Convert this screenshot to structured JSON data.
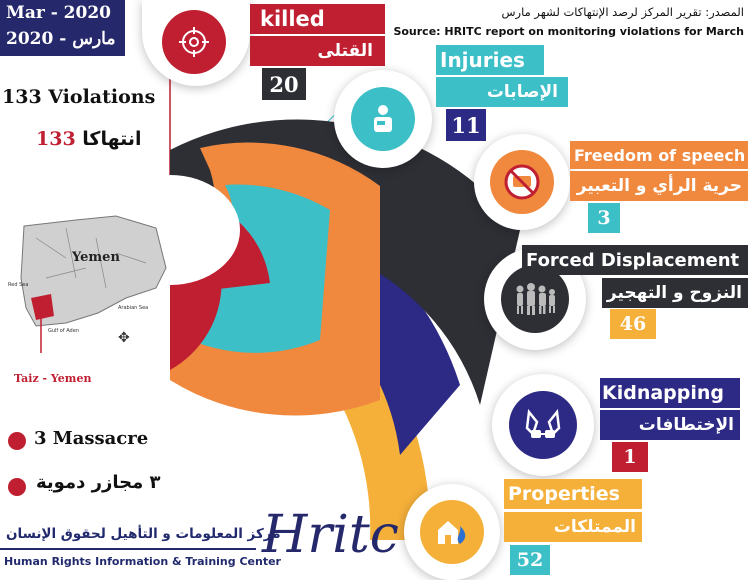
{
  "date": {
    "en": "Mar - 2020",
    "ar": "مارس - 2020"
  },
  "source": {
    "ar": "المصدر: تقرير المركز لرصد الإنتهاكات لشهر مارس",
    "en": "Source: HRITC report on monitoring violations for March"
  },
  "violations": {
    "en": "133 Violations",
    "ar_number": "133",
    "ar_text": "انتهاكا"
  },
  "map": {
    "country": "Yemen",
    "location": "Taiz - Yemen",
    "red_sea": "Red Sea",
    "gulf": "Gulf of Aden",
    "arabian_sea": "Arabian Sea"
  },
  "massacres": {
    "en": "3 Massacre",
    "ar": "٣ مجازر دموية"
  },
  "categories": [
    {
      "en": "killed",
      "ar": "القتلى",
      "value": "20",
      "color": "#c01f31",
      "icon": "crosshair-icon"
    },
    {
      "en": "Injuries",
      "ar": "الإصابات",
      "value": "11",
      "color": "#3dbfc8",
      "icon": "injured-person-icon"
    },
    {
      "en": "Freedom of speech",
      "ar": "حرية الرأي و التعبير",
      "value": "3",
      "color": "#f0883e",
      "icon": "no-speech-icon"
    },
    {
      "en": "Forced Displacement",
      "ar": "النزوح و التهجير",
      "value": "46",
      "color": "#2d2f35",
      "icon": "refugees-icon"
    },
    {
      "en": "Kidnapping",
      "ar": "الإختطافات",
      "value": "1",
      "color": "#2d2a85",
      "icon": "handcuffs-icon"
    },
    {
      "en": "Properties",
      "ar": "الممتلكات",
      "value": "52",
      "color": "#f5b03a",
      "icon": "house-fire-icon"
    }
  ],
  "org": {
    "ar": "مركز المعلومات و التأهيل لحقوق الإنسان",
    "en": "Human Rights Information & Training Center",
    "logo": "Hritc"
  }
}
